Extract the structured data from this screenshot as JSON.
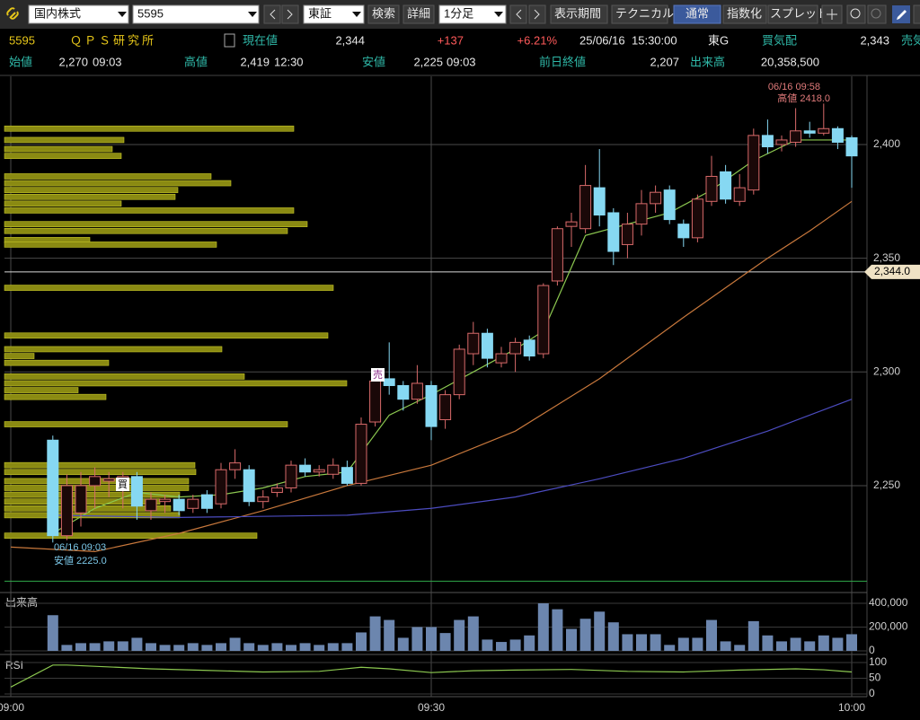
{
  "toolbar": {
    "market": "国内株式",
    "code": "5595",
    "exchange": "東証",
    "search": "検索",
    "detail": "詳細",
    "interval": "1分足",
    "period": "表示期間",
    "technical": "テクニカル",
    "normal": "通常",
    "index": "指数化",
    "spread": "スプレッド"
  },
  "info": {
    "code": "5595",
    "name": "ＱＰＳ研究所",
    "price_label": "現在値",
    "price": "2,344",
    "change": "+137",
    "change_pct": "+6.21%",
    "date": "25/06/16",
    "time": "15:30:00",
    "market": "東G",
    "bid_label": "買気配",
    "bid": "2,343",
    "ask_label": "売気",
    "open_label": "始値",
    "open": "2,270",
    "open_time": "09:03",
    "high_label": "高値",
    "high": "2,419",
    "high_time": "12:30",
    "low_label": "安値",
    "low": "2,225",
    "low_time": "09:03",
    "prev_label": "前日終値",
    "prev": "2,207",
    "volume_label": "出来高",
    "volume": "20,358,500"
  },
  "chart_data": {
    "type": "candlestick",
    "x": [
      "09:03",
      "09:04",
      "09:05",
      "09:06",
      "09:07",
      "09:08",
      "09:09",
      "09:10",
      "09:11",
      "09:12",
      "09:13",
      "09:14",
      "09:15",
      "09:16",
      "09:17",
      "09:18",
      "09:19",
      "09:20",
      "09:21",
      "09:22",
      "09:23",
      "09:24",
      "09:25",
      "09:26",
      "09:27",
      "09:28",
      "09:29",
      "09:30",
      "09:31",
      "09:32",
      "09:33",
      "09:34",
      "09:35",
      "09:36",
      "09:37",
      "09:38",
      "09:39",
      "09:40",
      "09:41",
      "09:42",
      "09:43",
      "09:44",
      "09:45",
      "09:46",
      "09:47",
      "09:48",
      "09:49",
      "09:50",
      "09:51",
      "09:52",
      "09:53",
      "09:54",
      "09:55",
      "09:56",
      "09:57",
      "09:58",
      "09:59",
      "10:00"
    ],
    "open": [
      2270,
      2228,
      2238,
      2250,
      2252,
      2249,
      2254,
      2239,
      2243,
      2244,
      2240,
      2246,
      2242,
      2257,
      2257,
      2243,
      2247,
      2249,
      2259,
      2256,
      2255,
      2258,
      2251,
      2278,
      2297,
      2294,
      2288,
      2294,
      2279,
      2290,
      2308,
      2317,
      2304,
      2308,
      2314,
      2308,
      2340,
      2364,
      2363,
      2381,
      2370,
      2356,
      2365,
      2374,
      2380,
      2365,
      2359,
      2375,
      2388,
      2375,
      2380,
      2404,
      2400,
      2401,
      2406,
      2405,
      2407,
      2403
    ],
    "high": [
      2272,
      2255,
      2256,
      2258,
      2256,
      2256,
      2256,
      2247,
      2246,
      2246,
      2246,
      2248,
      2260,
      2266,
      2259,
      2248,
      2251,
      2261,
      2262,
      2259,
      2262,
      2261,
      2280,
      2300,
      2313,
      2296,
      2303,
      2296,
      2292,
      2312,
      2322,
      2319,
      2311,
      2315,
      2316,
      2339,
      2364,
      2370,
      2391,
      2398,
      2372,
      2370,
      2380,
      2382,
      2382,
      2367,
      2378,
      2395,
      2391,
      2387,
      2407,
      2411,
      2404,
      2416,
      2410,
      2418,
      2408,
      2404
    ],
    "low": [
      2225,
      2226,
      2232,
      2240,
      2245,
      2240,
      2235,
      2235,
      2238,
      2237,
      2238,
      2238,
      2240,
      2253,
      2241,
      2240,
      2245,
      2247,
      2254,
      2254,
      2253,
      2250,
      2250,
      2276,
      2290,
      2283,
      2286,
      2270,
      2275,
      2288,
      2303,
      2302,
      2302,
      2300,
      2305,
      2306,
      2338,
      2355,
      2361,
      2364,
      2347,
      2350,
      2360,
      2370,
      2365,
      2355,
      2357,
      2373,
      2374,
      2373,
      2378,
      2396,
      2397,
      2399,
      2403,
      2404,
      2398,
      2381
    ],
    "close": [
      2228,
      2250,
      2250,
      2254,
      2253,
      2254,
      2241,
      2244,
      2244,
      2239,
      2244,
      2240,
      2257,
      2260,
      2243,
      2245,
      2249,
      2259,
      2256,
      2257,
      2259,
      2251,
      2277,
      2296,
      2294,
      2288,
      2295,
      2276,
      2290,
      2310,
      2317,
      2306,
      2308,
      2313,
      2307,
      2338,
      2363,
      2366,
      2382,
      2369,
      2353,
      2365,
      2374,
      2379,
      2367,
      2359,
      2376,
      2386,
      2376,
      2381,
      2404,
      2399,
      2402,
      2406,
      2405,
      2407,
      2401,
      2395
    ],
    "up_color": "#d86a6a",
    "down_color": "#86d8f2",
    "xlim": [
      "09:00",
      "10:00"
    ],
    "xticks": [
      "09:00",
      "09:30",
      "10:00"
    ],
    "ylim": [
      2203,
      2430
    ],
    "yticks": [
      {
        "value": 2250,
        "label": "2,250"
      },
      {
        "value": 2300,
        "label": "2,300"
      },
      {
        "value": 2350,
        "label": "2,350"
      },
      {
        "value": 2400,
        "label": "2,400"
      }
    ],
    "grid": true,
    "current": {
      "value": 2344,
      "label": "2,344.0"
    },
    "hlines": [
      {
        "value": 2208,
        "color": "#2fa84a"
      }
    ],
    "moving_averages": [
      {
        "color": "#8cc850",
        "x": [
          "09:03",
          "09:06",
          "09:09",
          "09:12",
          "09:15",
          "09:18",
          "09:21",
          "09:24",
          "09:27",
          "09:30",
          "09:33",
          "09:36",
          "09:38",
          "09:39",
          "09:41",
          "09:44",
          "09:47",
          "09:50",
          "09:53",
          "09:56",
          "10:00"
        ],
        "values": [
          2229,
          2240,
          2247,
          2245,
          2246,
          2249,
          2254,
          2256,
          2281,
          2290,
          2300,
          2310,
          2318,
          2332,
          2360,
          2365,
          2370,
          2380,
          2393,
          2402,
          2402
        ]
      },
      {
        "color": "#c8783c",
        "x": [
          "09:00",
          "09:06",
          "09:12",
          "09:18",
          "09:24",
          "09:30",
          "09:36",
          "09:42",
          "09:48",
          "09:54",
          "09:57",
          "10:00"
        ],
        "values": [
          2223,
          2221,
          2229,
          2239,
          2250,
          2259,
          2274,
          2297,
          2324,
          2350,
          2362,
          2375
        ]
      },
      {
        "color": "#4c4cc0",
        "x": [
          "09:03",
          "09:12",
          "09:24",
          "09:30",
          "09:36",
          "09:42",
          "09:48",
          "09:54",
          "10:00"
        ],
        "values": [
          2237,
          2236,
          2237,
          2240,
          2245,
          2253,
          2262,
          2274,
          2288
        ]
      }
    ],
    "profile": {
      "color": "#8a8a12",
      "prices": [
        2407,
        2402,
        2398,
        2395,
        2386,
        2383,
        2380,
        2377,
        2374,
        2371,
        2365,
        2362,
        2358,
        2356,
        2337,
        2316,
        2310,
        2307,
        2304,
        2298,
        2295,
        2292,
        2289,
        2277,
        2259,
        2256,
        2252,
        2249,
        2246,
        2243,
        2240,
        2237,
        2228
      ],
      "values": [
        322,
        133,
        120,
        130,
        230,
        252,
        193,
        190,
        130,
        322,
        337,
        315,
        95,
        236,
        366,
        360,
        242,
        33,
        116,
        267,
        381,
        82,
        113,
        315,
        212,
        213,
        205,
        205,
        195,
        173,
        185,
        195,
        281
      ]
    },
    "annotations": {
      "high_time": "06/16 09:58",
      "high_text": "高値 2418.0",
      "low_time": "06/16 09:03",
      "low_text": "安値 2225.0",
      "buy": "買",
      "sell": "売"
    },
    "volume": {
      "title": "出来高",
      "color": "#6c86ae",
      "values": [
        300000,
        50000,
        65000,
        65000,
        80000,
        80000,
        110000,
        65000,
        50000,
        50000,
        65000,
        50000,
        65000,
        110000,
        65000,
        50000,
        65000,
        50000,
        65000,
        50000,
        65000,
        65000,
        155000,
        290000,
        260000,
        110000,
        200000,
        200000,
        150000,
        260000,
        290000,
        95000,
        75000,
        95000,
        130000,
        400000,
        350000,
        185000,
        270000,
        330000,
        240000,
        140000,
        140000,
        140000,
        50000,
        110000,
        110000,
        260000,
        80000,
        50000,
        250000,
        130000,
        80000,
        110000,
        80000,
        130000,
        110000,
        140000
      ],
      "ylim": [
        0,
        468000
      ],
      "yticks": [
        0,
        {
          "value": 200000,
          "label": "200,000"
        },
        {
          "value": 400000,
          "label": "400,000"
        }
      ]
    },
    "rsi": {
      "title": "RSI",
      "color": "#8cc850",
      "x": [
        "09:00",
        "09:03",
        "09:04",
        "09:10",
        "09:14",
        "09:18",
        "09:22",
        "09:25",
        "09:27",
        "09:30",
        "09:33",
        "09:36",
        "09:40",
        "09:44",
        "09:48",
        "09:52",
        "09:56",
        "09:58",
        "10:00"
      ],
      "values": [
        22,
        92,
        92,
        80,
        75,
        70,
        72,
        85,
        80,
        68,
        74,
        76,
        78,
        72,
        70,
        76,
        80,
        77,
        70
      ],
      "ylim": [
        0,
        100
      ],
      "yticks": [
        0,
        50,
        100
      ]
    }
  }
}
